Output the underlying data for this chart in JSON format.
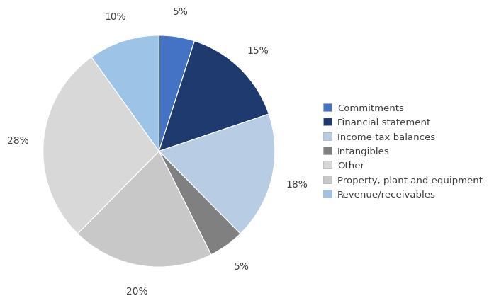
{
  "plot_order_labels": [
    "Commitments",
    "Financial statement",
    "Income tax balances",
    "Intangibles",
    "Property, plant and equipment",
    "Other",
    "Revenue/receivables"
  ],
  "plot_values": [
    5,
    15,
    18,
    5,
    20,
    28,
    10
  ],
  "plot_colors": [
    "#4472c4",
    "#1f3a6e",
    "#b8cce4",
    "#808080",
    "#c8c8c8",
    "#d8d8d8",
    "#9dc3e6"
  ],
  "plot_pcts": [
    "5%",
    "15%",
    "18%",
    "5%",
    "20%",
    "28%",
    "10%"
  ],
  "legend_labels": [
    "Commitments",
    "Financial statement",
    "Income tax balances",
    "Intangibles",
    "Other",
    "Property, plant and equipment",
    "Revenue/receivables"
  ],
  "legend_colors": [
    "#4472c4",
    "#1f3a6e",
    "#b8cce4",
    "#808080",
    "#d8d8d8",
    "#c8c8c8",
    "#9dc3e6"
  ],
  "startangle": 90,
  "background_color": "#ffffff"
}
